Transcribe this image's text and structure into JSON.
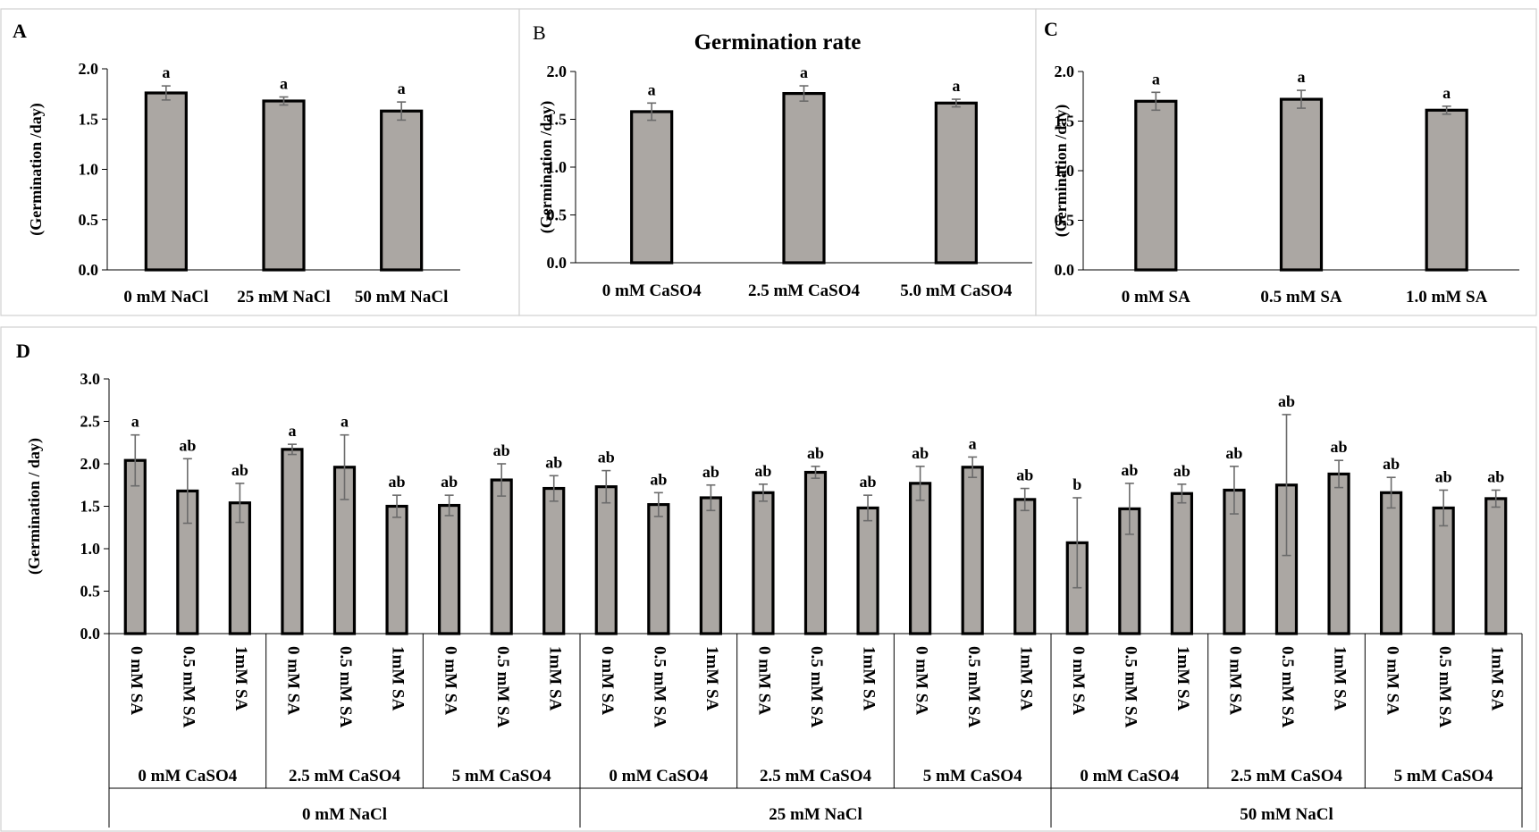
{
  "chart_data": [
    {
      "panel": "A",
      "type": "bar",
      "title": "",
      "xlabel": "",
      "ylabel": "(Germination /day)",
      "ylim": [
        0,
        2.0
      ],
      "yticks": [
        "0.0",
        "0.5",
        "1.0",
        "1.5",
        "2.0"
      ],
      "categories": [
        "0 mM NaCl",
        "25 mM NaCl",
        "50 mM NaCl"
      ],
      "values": [
        1.76,
        1.68,
        1.58
      ],
      "errors": [
        0.07,
        0.04,
        0.09
      ],
      "letters": [
        "a",
        "a",
        "a"
      ]
    },
    {
      "panel": "B",
      "type": "bar",
      "title": "Germination rate",
      "xlabel": "",
      "ylabel": "(Germination /day)",
      "ylim": [
        0,
        2.0
      ],
      "yticks": [
        "0.0",
        "0.5",
        "1.0",
        "1.5",
        "2.0"
      ],
      "categories": [
        "0 mM CaSO4",
        "2.5 mM CaSO4",
        "5.0 mM CaSO4"
      ],
      "values": [
        1.58,
        1.77,
        1.67
      ],
      "errors": [
        0.09,
        0.08,
        0.04
      ],
      "letters": [
        "a",
        "a",
        "a"
      ]
    },
    {
      "panel": "C",
      "type": "bar",
      "title": "",
      "xlabel": "",
      "ylabel": "(Germination /day)",
      "ylim": [
        0,
        2.0
      ],
      "yticks": [
        "0.0",
        "0.5",
        "1.0",
        "1.5",
        "2.0"
      ],
      "categories": [
        "0 mM SA",
        "0.5 mM SA",
        "1.0 mM SA"
      ],
      "values": [
        1.7,
        1.72,
        1.61
      ],
      "errors": [
        0.09,
        0.09,
        0.04
      ],
      "letters": [
        "a",
        "a",
        "a"
      ]
    },
    {
      "panel": "D",
      "type": "bar",
      "title": "",
      "xlabel": "",
      "ylabel": "(Germination / day)",
      "ylim": [
        0,
        3.0
      ],
      "yticks": [
        "0.0",
        "0.5",
        "1.0",
        "1.5",
        "2.0",
        "2.5",
        "3.0"
      ],
      "categories": [
        "0 mM SA",
        "0.5 mM SA",
        "1mM SA",
        "0 mM SA",
        "0.5 mM SA",
        "1mM SA",
        "0 mM SA",
        "0.5 mM SA",
        "1mM SA",
        "0 mM SA",
        "0.5 mM SA",
        "1mM SA",
        "0 mM SA",
        "0.5 mM SA",
        "1mM SA",
        "0 mM SA",
        "0.5 mM SA",
        "1mM SA",
        "0 mM SA",
        "0.5 mM SA",
        "1mM SA",
        "0 mM SA",
        "0.5 mM SA",
        "1mM SA",
        "0 mM SA",
        "0.5 mM SA",
        "1mM SA"
      ],
      "values": [
        2.04,
        1.68,
        1.54,
        2.17,
        1.96,
        1.5,
        1.51,
        1.81,
        1.71,
        1.73,
        1.52,
        1.6,
        1.66,
        1.9,
        1.48,
        1.77,
        1.96,
        1.58,
        1.07,
        1.47,
        1.65,
        1.69,
        1.75,
        1.88,
        1.66,
        1.48,
        1.59
      ],
      "errors": [
        0.3,
        0.38,
        0.23,
        0.06,
        0.38,
        0.13,
        0.12,
        0.19,
        0.15,
        0.19,
        0.14,
        0.15,
        0.1,
        0.07,
        0.15,
        0.2,
        0.12,
        0.13,
        0.53,
        0.3,
        0.11,
        0.28,
        0.83,
        0.16,
        0.18,
        0.21,
        0.1
      ],
      "letters": [
        "a",
        "ab",
        "ab",
        "a",
        "a",
        "ab",
        "ab",
        "ab",
        "ab",
        "ab",
        "ab",
        "ab",
        "ab",
        "ab",
        "ab",
        "ab",
        "a",
        "ab",
        "b",
        "ab",
        "ab",
        "ab",
        "ab",
        "ab",
        "ab",
        "ab",
        "ab"
      ],
      "caso4_groups": [
        "0 mM CaSO4",
        "2.5 mM CaSO4",
        "5 mM CaSO4",
        "0 mM CaSO4",
        "2.5 mM CaSO4",
        "5 mM CaSO4",
        "0 mM CaSO4",
        "2.5 mM CaSO4",
        "5 mM CaSO4"
      ],
      "nacl_groups": [
        "0 mM NaCl",
        "25 mM NaCl",
        "50 mM NaCl"
      ]
    }
  ],
  "colors": {
    "bar_fill": "#aba7a3",
    "bar_stroke": "#000000",
    "error_bar": "#6b6b6b",
    "panel_border": "#d0d0d0"
  }
}
